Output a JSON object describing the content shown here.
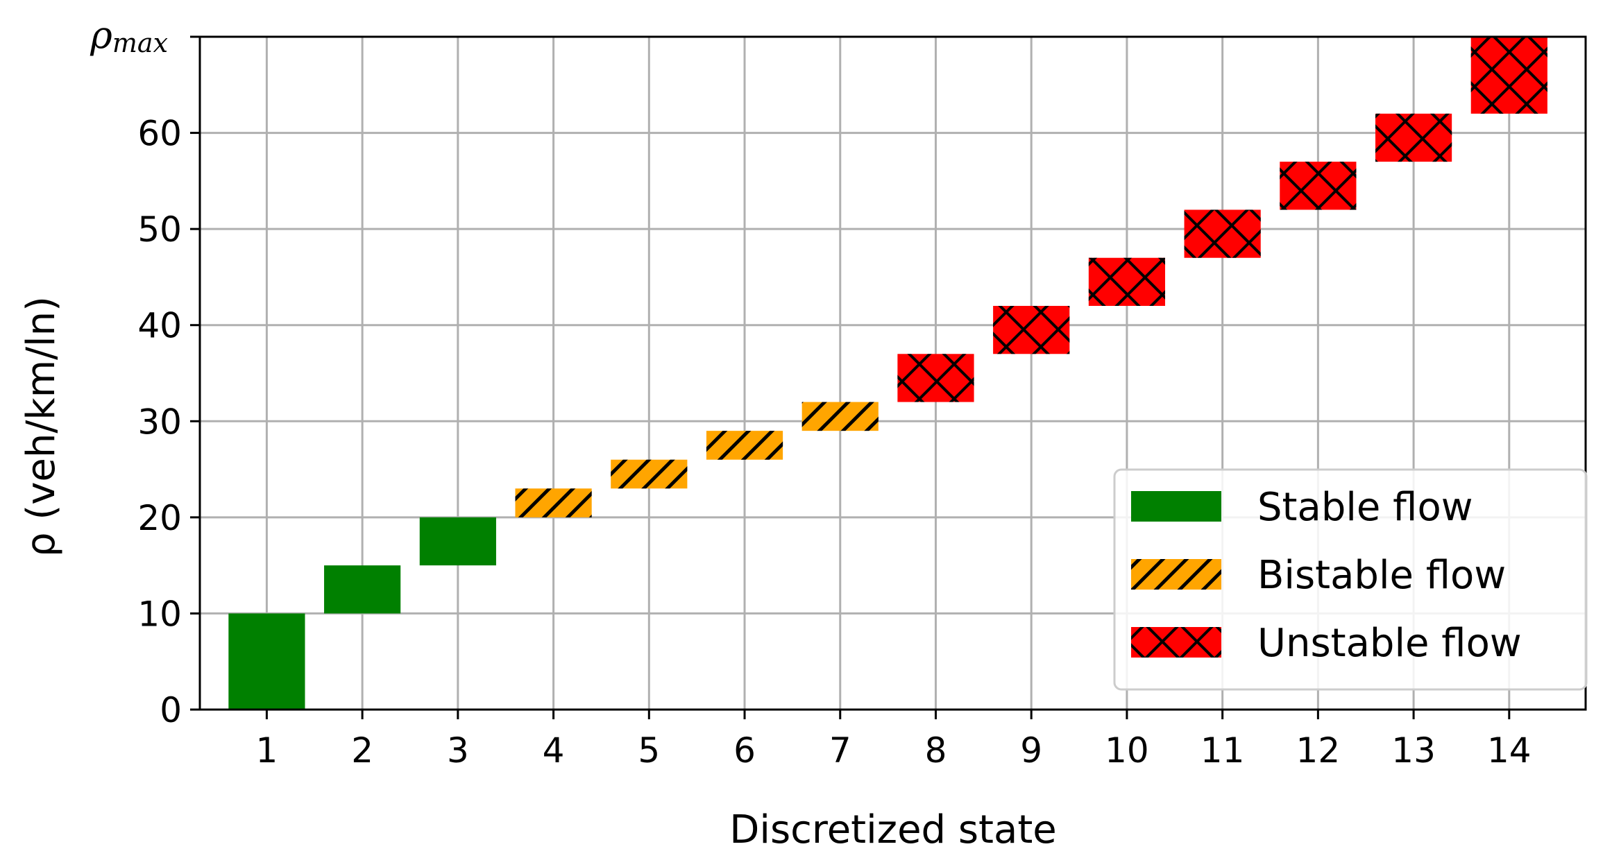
{
  "chart_data": {
    "type": "bar",
    "bar_style": "floating-range",
    "xlabel": "Discretized state",
    "ylabel": "ρ (veh/km/ln)",
    "ymax_label": "ρmax",
    "ymax_label_value": 70,
    "xlim": [
      0.3,
      14.8
    ],
    "ylim": [
      0,
      70
    ],
    "x_ticks": [
      1,
      2,
      3,
      4,
      5,
      6,
      7,
      8,
      9,
      10,
      11,
      12,
      13,
      14
    ],
    "y_ticks": [
      0,
      10,
      20,
      30,
      40,
      50,
      60
    ],
    "grid": true,
    "legend_placement": "lower-right",
    "series": [
      {
        "name": "Stable flow",
        "color": "#008000",
        "hatch": "none"
      },
      {
        "name": "Bistable flow",
        "color": "#FFA500",
        "hatch": "diagonal"
      },
      {
        "name": "Unstable flow",
        "color": "#FF0000",
        "hatch": "cross"
      }
    ],
    "bars": [
      {
        "x": 1,
        "low": 0,
        "high": 10,
        "series": 0
      },
      {
        "x": 2,
        "low": 10,
        "high": 15,
        "series": 0
      },
      {
        "x": 3,
        "low": 15,
        "high": 20,
        "series": 0
      },
      {
        "x": 4,
        "low": 20,
        "high": 23,
        "series": 1
      },
      {
        "x": 5,
        "low": 23,
        "high": 26,
        "series": 1
      },
      {
        "x": 6,
        "low": 26,
        "high": 29,
        "series": 1
      },
      {
        "x": 7,
        "low": 29,
        "high": 32,
        "series": 1
      },
      {
        "x": 8,
        "low": 32,
        "high": 37,
        "series": 2
      },
      {
        "x": 9,
        "low": 37,
        "high": 42,
        "series": 2
      },
      {
        "x": 10,
        "low": 42,
        "high": 47,
        "series": 2
      },
      {
        "x": 11,
        "low": 47,
        "high": 52,
        "series": 2
      },
      {
        "x": 12,
        "low": 52,
        "high": 57,
        "series": 2
      },
      {
        "x": 13,
        "low": 57,
        "high": 62,
        "series": 2
      },
      {
        "x": 14,
        "low": 62,
        "high": 70,
        "series": 2
      }
    ]
  }
}
